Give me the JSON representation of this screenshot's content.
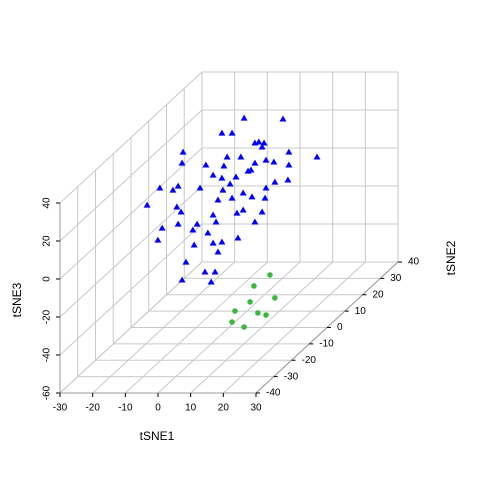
{
  "chart_data": {
    "type": "scatter3d",
    "x_label": "tSNE1",
    "y_label": "tSNE2",
    "z_label": "tSNE3",
    "xlim": [
      -30,
      30
    ],
    "ylim": [
      -40,
      40
    ],
    "zlim": [
      -60,
      40
    ],
    "xticks": [
      -30,
      -20,
      -10,
      0,
      10,
      20,
      30
    ],
    "yticks": [
      -40,
      -30,
      -20,
      -10,
      0,
      10,
      20,
      30,
      40
    ],
    "zticks": [
      -60,
      -40,
      -20,
      0,
      20,
      40
    ],
    "grid": true,
    "series": [
      {
        "color": "#0000ff",
        "marker": "triangle",
        "x": [
          -0.8,
          11.1,
          -7.6,
          -4.5,
          3.7,
          2.5,
          5.3,
          4.7,
          21.5,
          12.9,
          -19.5,
          -6.0,
          -1.8,
          2.5,
          5.9,
          12.9,
          -12.5,
          8.3,
          1.3,
          -19.8,
          -7.0,
          -21.0,
          -22.6,
          -10.3,
          -7.6,
          0.4,
          -3.3,
          -5.1,
          8.6,
          12.6,
          5.9,
          -26.6,
          -14.3,
          -7.3,
          -1.1,
          1.6,
          -4.5,
          -8.8,
          5.6,
          -30.5,
          -21.4,
          -1.1,
          -20.1,
          -3.0,
          -10.3,
          4.7,
          2.5,
          -15.2,
          -9.4,
          -21.0,
          -25.9,
          -16.5,
          -11.9,
          -27.2,
          -2.7,
          -16.1,
          -7.6,
          -10.3,
          -18.6,
          -12.8,
          -19.8,
          -9.7,
          -10.9,
          -8.8
        ],
        "y": [
          10,
          10,
          10,
          10,
          10,
          10,
          10,
          10,
          10,
          10,
          10,
          10,
          10,
          10,
          10,
          10,
          10,
          10,
          10,
          10,
          10,
          10,
          10,
          10,
          10,
          10,
          10,
          10,
          10,
          10,
          10,
          10,
          10,
          10,
          10,
          10,
          10,
          10,
          10,
          10,
          10,
          10,
          10,
          10,
          10,
          10,
          10,
          10,
          10,
          10,
          10,
          10,
          10,
          10,
          10,
          10,
          10,
          10,
          10,
          10,
          10,
          10,
          10,
          10
        ],
        "z": [
          41.6,
          41.1,
          33.7,
          33.7,
          29.0,
          28.5,
          28.5,
          26.4,
          21.1,
          23.7,
          23.7,
          21.1,
          21.1,
          17.9,
          19.5,
          16.9,
          16.9,
          18.5,
          14.3,
          17.9,
          16.4,
          5.8,
          3.7,
          11.6,
          10.0,
          13.7,
          10.6,
          6.9,
          7.9,
          9.0,
          4.8,
          4.8,
          4.8,
          3.7,
          2.2,
          0.1,
          -0.5,
          -1.5,
          -0.5,
          -4.2,
          -5.2,
          -6.8,
          -7.8,
          -8.4,
          -9.4,
          -7.8,
          -13.1,
          -14.2,
          -13.1,
          -14.2,
          -16.3,
          -17.3,
          -18.9,
          -22.6,
          -21.5,
          -25.2,
          -23.6,
          -24.2,
          -34.2,
          -39.4,
          -43.6,
          -39.4,
          -44.7,
          -28.9
        ]
      },
      {
        "color": "#3cb83c",
        "marker": "circle",
        "x": [
          23.4,
          18.5,
          24.9,
          17.3,
          12.7,
          19.7,
          22.2,
          11.8,
          15.5
        ],
        "y": [
          -20,
          -20,
          -20,
          -20,
          -20,
          -20,
          -20,
          -20,
          -20
        ],
        "z": [
          -15.1,
          -20.9,
          -27.2,
          -29.3,
          -34.1,
          -35.1,
          -36.2,
          -39.9,
          -42.5
        ]
      }
    ]
  }
}
